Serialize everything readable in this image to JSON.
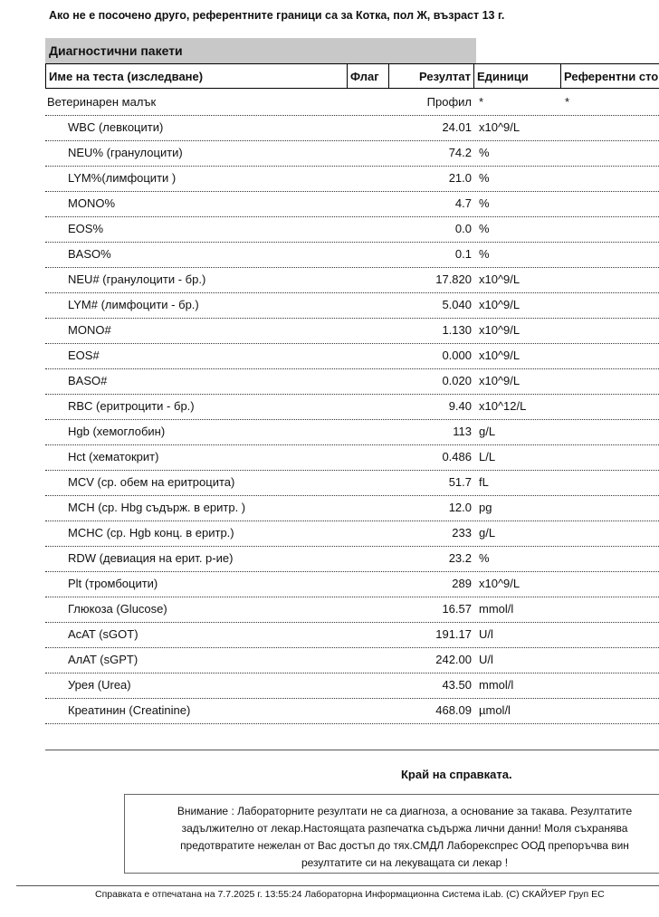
{
  "header": {
    "note": "Ако не е посочено друго, референтните граници са за Котка, пол Ж, възраст 13 г."
  },
  "table": {
    "section": "Диагностични пакети",
    "columns": [
      "Име на теста (изследване)",
      "Флаг",
      "Резултат",
      "Единици",
      "Референтни сто"
    ],
    "rows": [
      {
        "name": "Ветеринарен малък",
        "result": "Профил",
        "unit": "*",
        "reference": "*"
      },
      {
        "name": "WBC (левкоцити)",
        "result": "24.01",
        "unit": "x10^9/L"
      },
      {
        "name": "NEU% (гранулоцити)",
        "result": "74.2",
        "unit": "%"
      },
      {
        "name": "LYM%(лимфоцити )",
        "result": "21.0",
        "unit": "%"
      },
      {
        "name": "MONO%",
        "result": "4.7",
        "unit": "%"
      },
      {
        "name": "EOS%",
        "result": "0.0",
        "unit": "%"
      },
      {
        "name": "BASO%",
        "result": "0.1",
        "unit": "%"
      },
      {
        "name": "NEU# (гранулоцити - бр.)",
        "result": "17.820",
        "unit": "x10^9/L"
      },
      {
        "name": "LYM# (лимфоцити - бр.)",
        "result": "5.040",
        "unit": "x10^9/L"
      },
      {
        "name": "MONO#",
        "result": "1.130",
        "unit": "x10^9/L"
      },
      {
        "name": "EOS#",
        "result": "0.000",
        "unit": "x10^9/L"
      },
      {
        "name": "BASO#",
        "result": "0.020",
        "unit": "x10^9/L"
      },
      {
        "name": "RBC (еритроцити - бр.)",
        "result": "9.40",
        "unit": "x10^12/L"
      },
      {
        "name": "Hgb (хемоглобин)",
        "result": "113",
        "unit": "g/L"
      },
      {
        "name": "Hct (хематокрит)",
        "result": "0.486",
        "unit": "L/L"
      },
      {
        "name": "MCV (ср. обем на еритроцита)",
        "result": "51.7",
        "unit": "fL"
      },
      {
        "name": "MCH (ср. Hbg съдърж. в еритр. )",
        "result": "12.0",
        "unit": "pg"
      },
      {
        "name": "MCHC (ср. Hgb конц. в еритр.)",
        "result": "233",
        "unit": "g/L"
      },
      {
        "name": "RDW (девиация на ерит. р-ие)",
        "result": "23.2",
        "unit": "%"
      },
      {
        "name": "Plt (тромбоцити)",
        "result": "289",
        "unit": "x10^9/L"
      },
      {
        "name": "Глюкоза (Glucose)",
        "result": "16.57",
        "unit": "mmol/l"
      },
      {
        "name": "AcAT (sGOT)",
        "result": "191.17",
        "unit": "U/l"
      },
      {
        "name": "AлAT (sGPT)",
        "result": "242.00",
        "unit": "U/l"
      },
      {
        "name": "Урея (Urea)",
        "result": "43.50",
        "unit": "mmol/l"
      },
      {
        "name": "Креатинин (Creatinine)",
        "result": "468.09",
        "unit": "µmol/l"
      }
    ]
  },
  "end": "Край на справката.",
  "notice": [
    "Внимание : Лабораторните резултати не са диагноза, а основание за такава. Резултатите",
    "задължително от лекар.Настоящата разпечатка съдържа лични данни! Моля съхранява",
    "предотвратите нежелан от Вас достъп до тях.СМДЛ Лаборекспрес ООД препоръчва вин",
    "резултатите си на лекуващата си лекар !"
  ],
  "footer": "Справката е отпечатана на 7.7.2025 г. 13:55:24 Лабораторна Информационна Система iLab. (С) СКАЙУЕР Груп ЕС"
}
